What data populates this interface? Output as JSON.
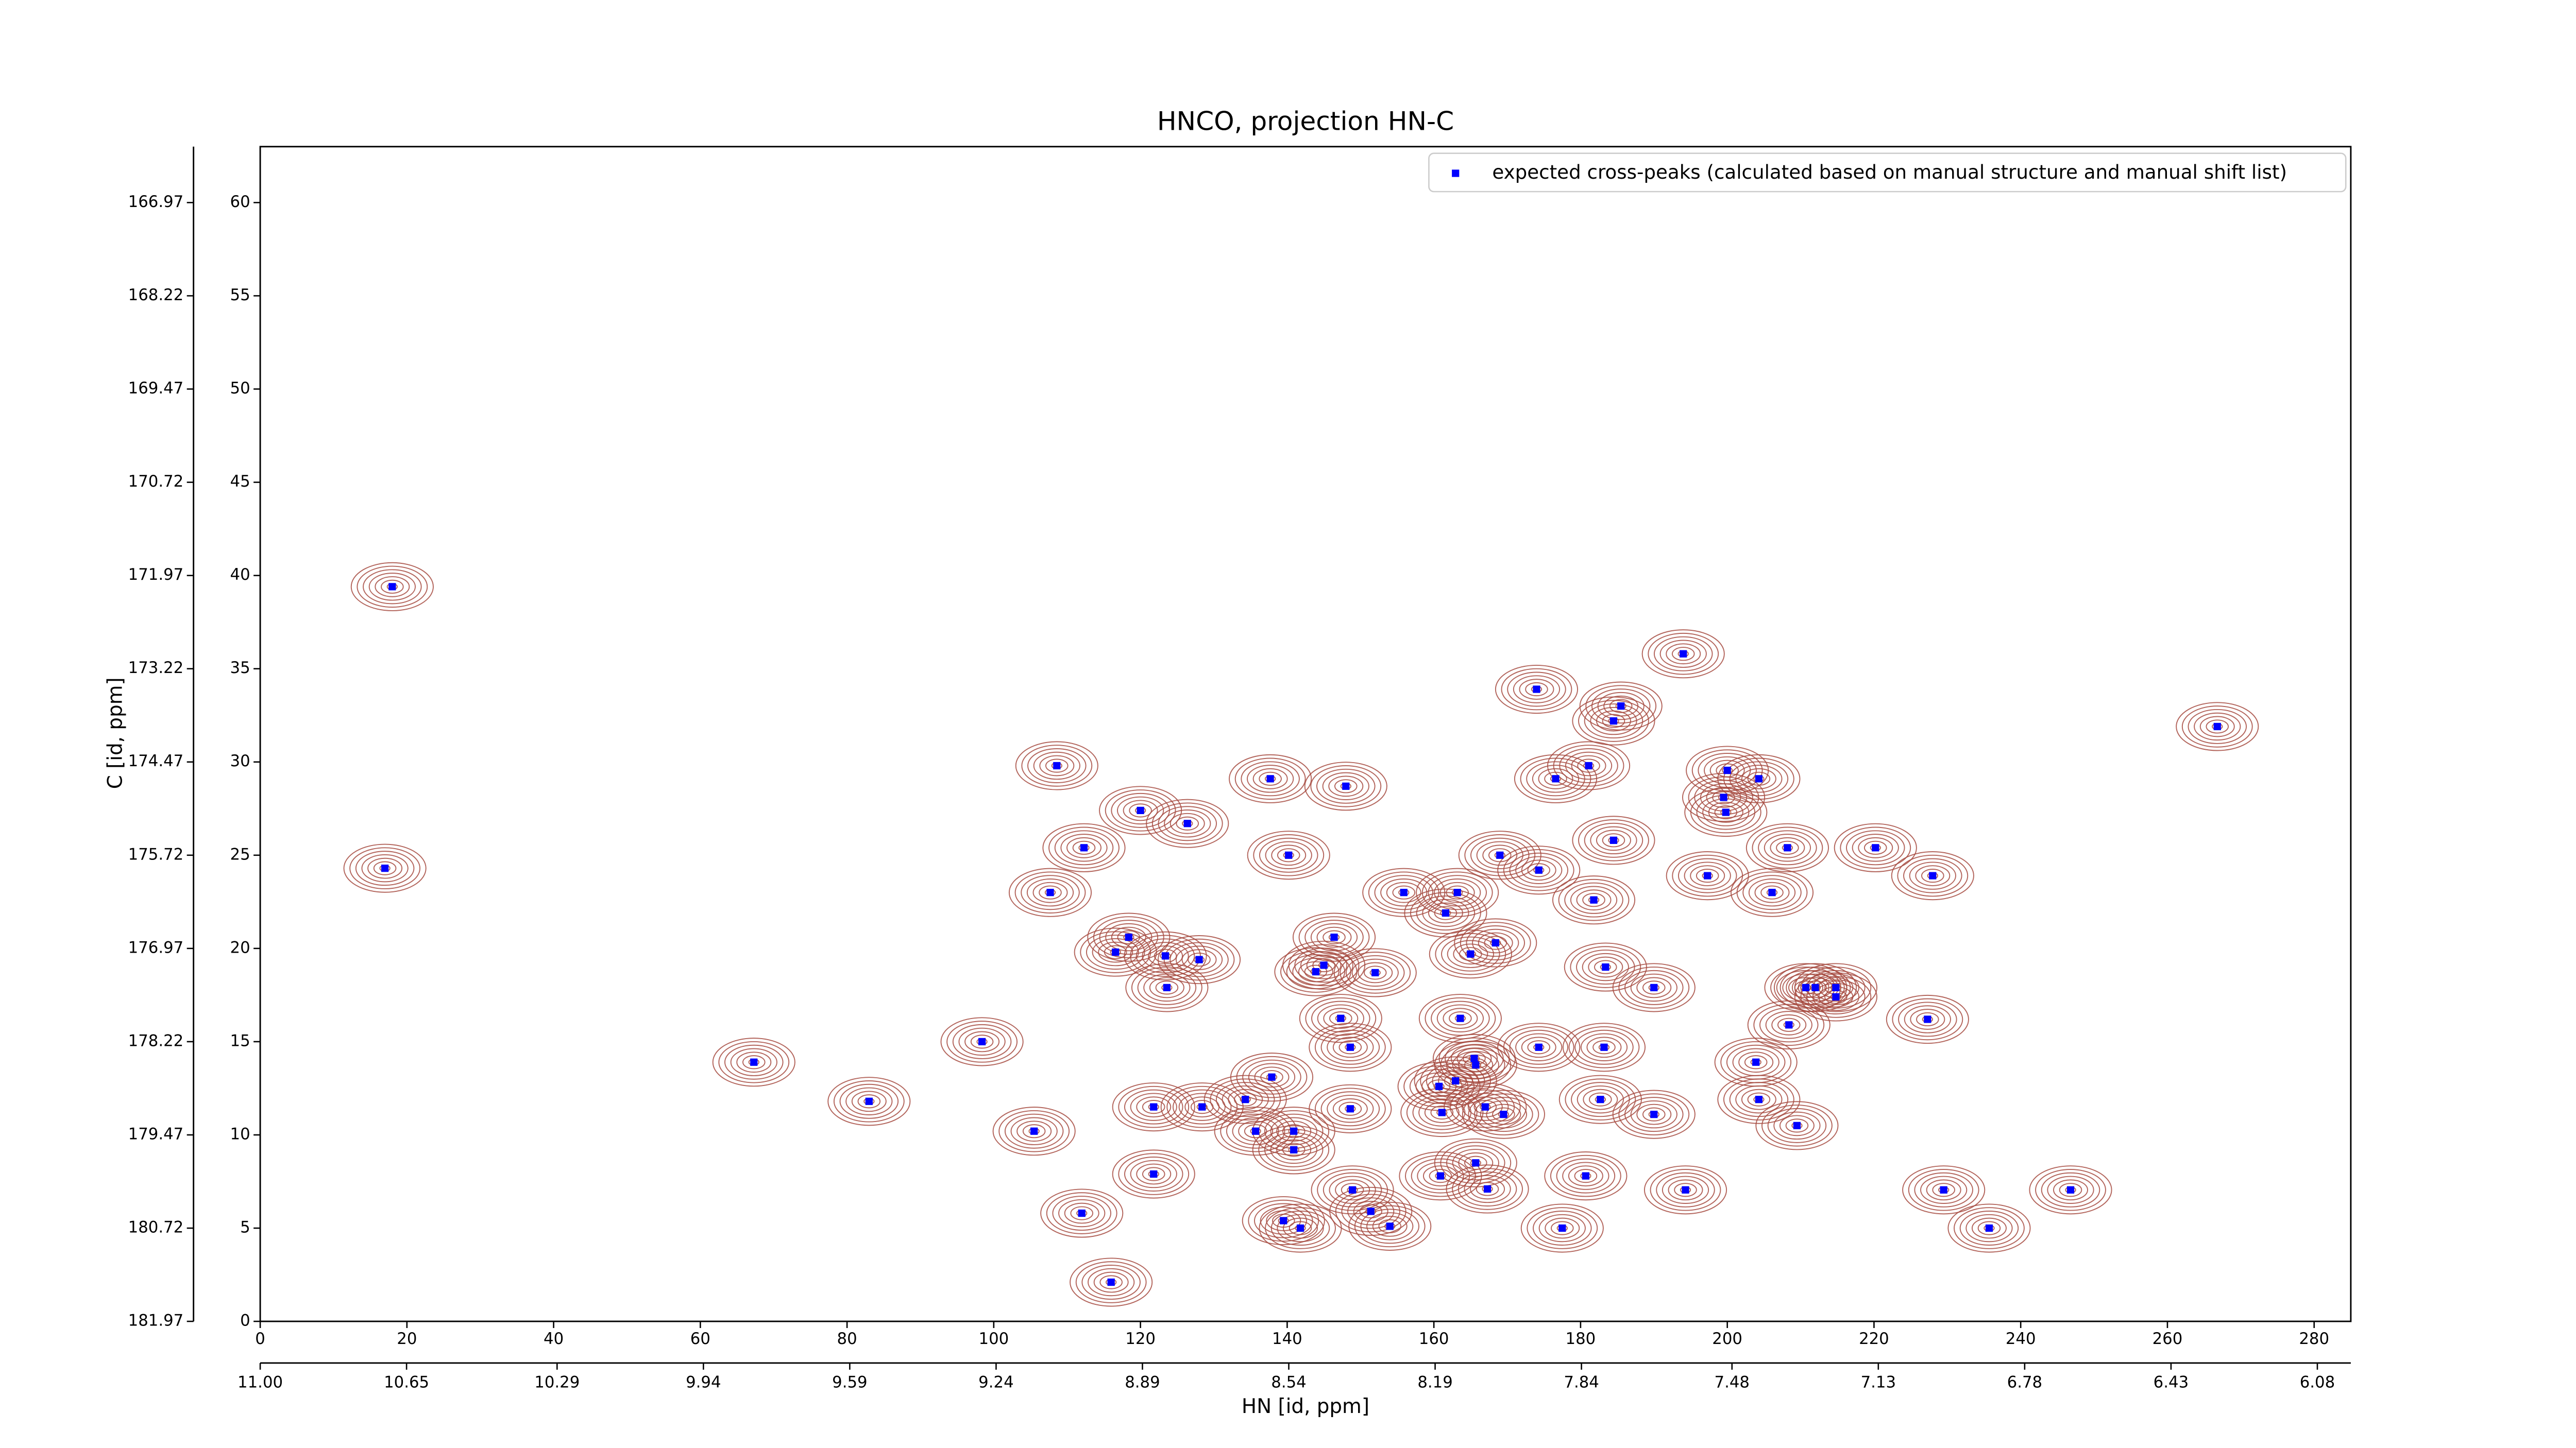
{
  "chart_data": {
    "type": "scatter",
    "title": "HNCO, projection HN-C",
    "xlabel": "HN [id, ppm]",
    "ylabel": "C [id, ppm]",
    "xlim": [
      0,
      285
    ],
    "ylim": [
      0,
      63
    ],
    "xticks": [
      0,
      20,
      40,
      60,
      80,
      100,
      120,
      140,
      160,
      180,
      200,
      220,
      240,
      260,
      280
    ],
    "yticks": [
      0,
      5,
      10,
      15,
      20,
      25,
      30,
      35,
      40,
      45,
      50,
      55,
      60
    ],
    "x2lim": [
      11.0,
      6.0
    ],
    "x2ticks": [
      {
        "value": 11.0,
        "label": "11.00"
      },
      10.65,
      10.29,
      9.94,
      9.59,
      9.24,
      8.89,
      8.54,
      8.19,
      7.84,
      7.48,
      7.13,
      6.78,
      6.43,
      6.08
    ],
    "y2lim": [
      181.97,
      166.22
    ],
    "y2ticks": [
      166.97,
      168.22,
      169.47,
      170.72,
      171.97,
      173.22,
      174.47,
      175.72,
      176.97,
      178.22,
      179.47,
      180.72,
      181.97
    ],
    "legend": "upper right",
    "contour_color": "#a64a40",
    "series": [
      {
        "name": "expected cross-peaks (calculated based on manual structure and manual shift list)",
        "color": "#0000ff",
        "x": [
          18,
          17,
          67.3,
          83,
          98.4,
          105.5,
          107.7,
          108.6,
          112.3,
          112,
          116,
          116.6,
          118.4,
          120,
          121.8,
          121.8,
          123.4,
          123.6,
          126.4,
          128,
          128.4,
          134.3,
          135.7,
          137.7,
          137.9,
          140.2,
          140.9,
          139.5,
          141.8,
          140.9,
          143.9,
          145,
          146.4,
          147.3,
          148,
          148.6,
          148.6,
          148.9,
          151.4,
          152,
          154,
          155.9,
          160.7,
          161.6,
          161.1,
          160.9,
          162.95,
          163.2,
          163.6,
          165,
          165.5,
          165.7,
          165.7,
          167,
          167.3,
          168.4,
          169,
          169.5,
          174.3,
          174.3,
          174,
          176.6,
          177.5,
          180.7,
          181.1,
          181.8,
          183.2,
          182.7,
          183.4,
          184.5,
          184.5,
          185.5,
          190,
          190,
          194,
          194.3,
          197.3,
          199.5,
          200,
          199.8,
          204.3,
          203.9,
          204.3,
          206.1,
          208.2,
          208.4,
          209.5,
          210.7,
          212,
          214.8,
          214.8,
          220.2,
          228,
          227.3,
          229.5,
          235.7,
          246.8,
          266.8
        ],
        "y": [
          39.4,
          24.3,
          13.9,
          11.8,
          15,
          10.2,
          23,
          29.8,
          25.4,
          5.8,
          2.1,
          19.8,
          20.6,
          27.4,
          11.5,
          7.9,
          19.6,
          17.9,
          26.7,
          19.4,
          11.5,
          11.9,
          10.2,
          29.1,
          13.1,
          25,
          10.2,
          5.4,
          5,
          9.2,
          18.75,
          19.1,
          20.6,
          16.25,
          28.7,
          14.7,
          11.4,
          7.05,
          5.9,
          18.7,
          5.1,
          23,
          12.6,
          21.9,
          11.2,
          7.8,
          12.9,
          23,
          16.25,
          19.7,
          14.1,
          13.75,
          8.5,
          11.5,
          7.1,
          20.3,
          25,
          11.1,
          24.2,
          14.7,
          33.9,
          29.1,
          5,
          7.8,
          29.8,
          22.6,
          14.7,
          11.9,
          19,
          25.8,
          32.2,
          33,
          11.1,
          17.9,
          35.8,
          7.05,
          23.9,
          28.1,
          29.55,
          27.3,
          29.1,
          13.9,
          11.9,
          23,
          25.4,
          15.9,
          10.5,
          17.9,
          17.9,
          17.9,
          17.4,
          25.4,
          23.9,
          16.2,
          7.05,
          5,
          7.05,
          31.9
        ]
      }
    ]
  }
}
